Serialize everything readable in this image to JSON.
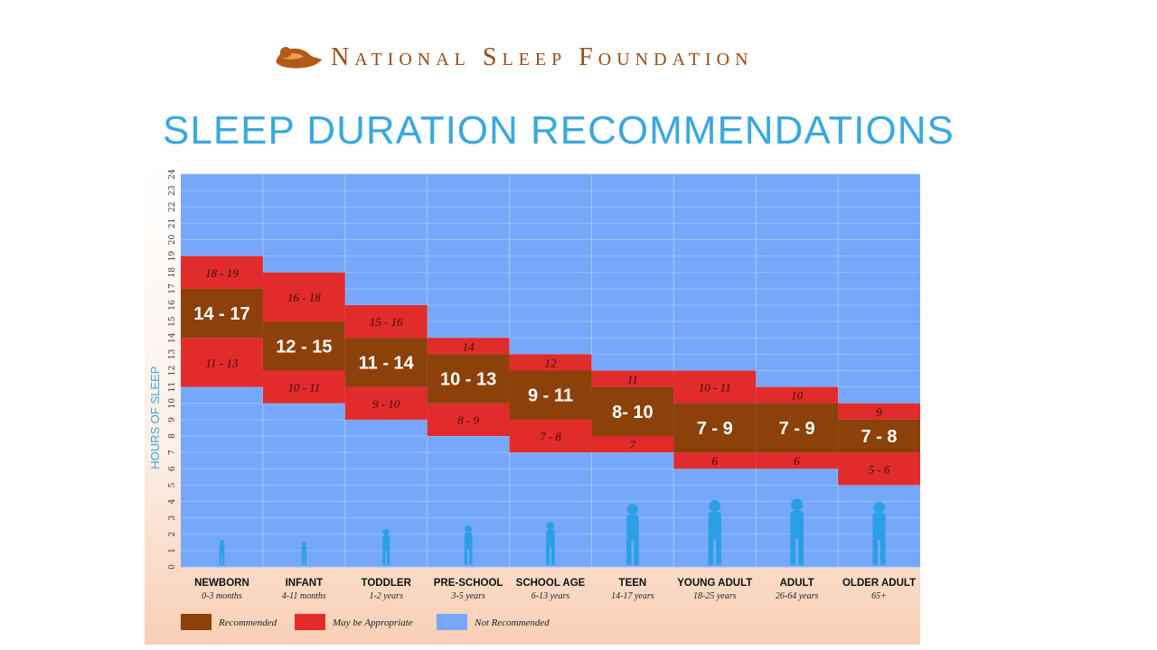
{
  "header": {
    "org_name": "National Sleep Foundation",
    "title": "SLEEP DURATION RECOMMENDATIONS"
  },
  "colors": {
    "recommended": "#8B4109",
    "may_be_appropriate": "#E22B2B",
    "not_recommended": "#75A8FA",
    "title": "#3AA8DD",
    "brand": "#9A4A12"
  },
  "chart_data": {
    "type": "bar",
    "stacked": true,
    "ylabel": "HOURS OF SLEEP",
    "ylim": [
      0,
      24
    ],
    "yticks": [
      "0",
      "1",
      "2",
      "3",
      "4",
      "5",
      "6",
      "7",
      "8",
      "9",
      "10",
      "11",
      "12",
      "13",
      "14",
      "15",
      "16",
      "17",
      "18",
      "19",
      "20",
      "21",
      "22",
      "23",
      "24"
    ],
    "grid": true,
    "legend_position": "bottom-left",
    "legend": [
      {
        "name": "Recommended",
        "color": "#8B4109"
      },
      {
        "name": "May be Appropriate",
        "color": "#E22B2B"
      },
      {
        "name": "Not Recommended",
        "color": "#75A8FA"
      }
    ],
    "categories": [
      {
        "name": "NEWBORN",
        "sub": "0-3 months",
        "rec": [
          14,
          17
        ],
        "rec_label": "14 - 17",
        "upper": [
          17,
          19
        ],
        "upper_label": "18 - 19",
        "lower": [
          11,
          14
        ],
        "lower_label": "11 - 13"
      },
      {
        "name": "INFANT",
        "sub": "4-11 months",
        "rec": [
          12,
          15
        ],
        "rec_label": "12 - 15",
        "upper": [
          15,
          18
        ],
        "upper_label": "16 - 18",
        "lower": [
          10,
          12
        ],
        "lower_label": "10 - 11"
      },
      {
        "name": "TODDLER",
        "sub": "1-2 years",
        "rec": [
          11,
          14
        ],
        "rec_label": "11 - 14",
        "upper": [
          14,
          16
        ],
        "upper_label": "15 - 16",
        "lower": [
          9,
          11
        ],
        "lower_label": "9 - 10"
      },
      {
        "name": "PRE-SCHOOL",
        "sub": "3-5 years",
        "rec": [
          10,
          13
        ],
        "rec_label": "10 - 13",
        "upper": [
          13,
          14
        ],
        "upper_label": "14",
        "lower": [
          8,
          10
        ],
        "lower_label": "8 - 9"
      },
      {
        "name": "SCHOOL AGE",
        "sub": "6-13 years",
        "rec": [
          9,
          12
        ],
        "rec_label": "9 - 11",
        "upper": [
          12,
          13
        ],
        "upper_label": "12",
        "lower": [
          7,
          9
        ],
        "lower_label": "7 - 8"
      },
      {
        "name": "TEEN",
        "sub": "14-17 years",
        "rec": [
          8,
          11
        ],
        "rec_label": "8- 10",
        "upper": [
          11,
          12
        ],
        "upper_label": "11",
        "lower": [
          7,
          8
        ],
        "lower_label": "7"
      },
      {
        "name": "YOUNG ADULT",
        "sub": "18-25 years",
        "rec": [
          7,
          10
        ],
        "rec_label": "7 - 9",
        "upper": [
          10,
          12
        ],
        "upper_label": "10 - 11",
        "lower": [
          6,
          7
        ],
        "lower_label": "6"
      },
      {
        "name": "ADULT",
        "sub": "26-64 years",
        "rec": [
          7,
          10
        ],
        "rec_label": "7 - 9",
        "upper": [
          10,
          11
        ],
        "upper_label": "10",
        "lower": [
          6,
          7
        ],
        "lower_label": "6"
      },
      {
        "name": "OLDER ADULT",
        "sub": "65+",
        "rec": [
          7,
          9
        ],
        "rec_label": "7 - 8",
        "upper": [
          9,
          10
        ],
        "upper_label": "9",
        "lower": [
          5,
          7
        ],
        "lower_label": "5 - 6"
      }
    ]
  }
}
